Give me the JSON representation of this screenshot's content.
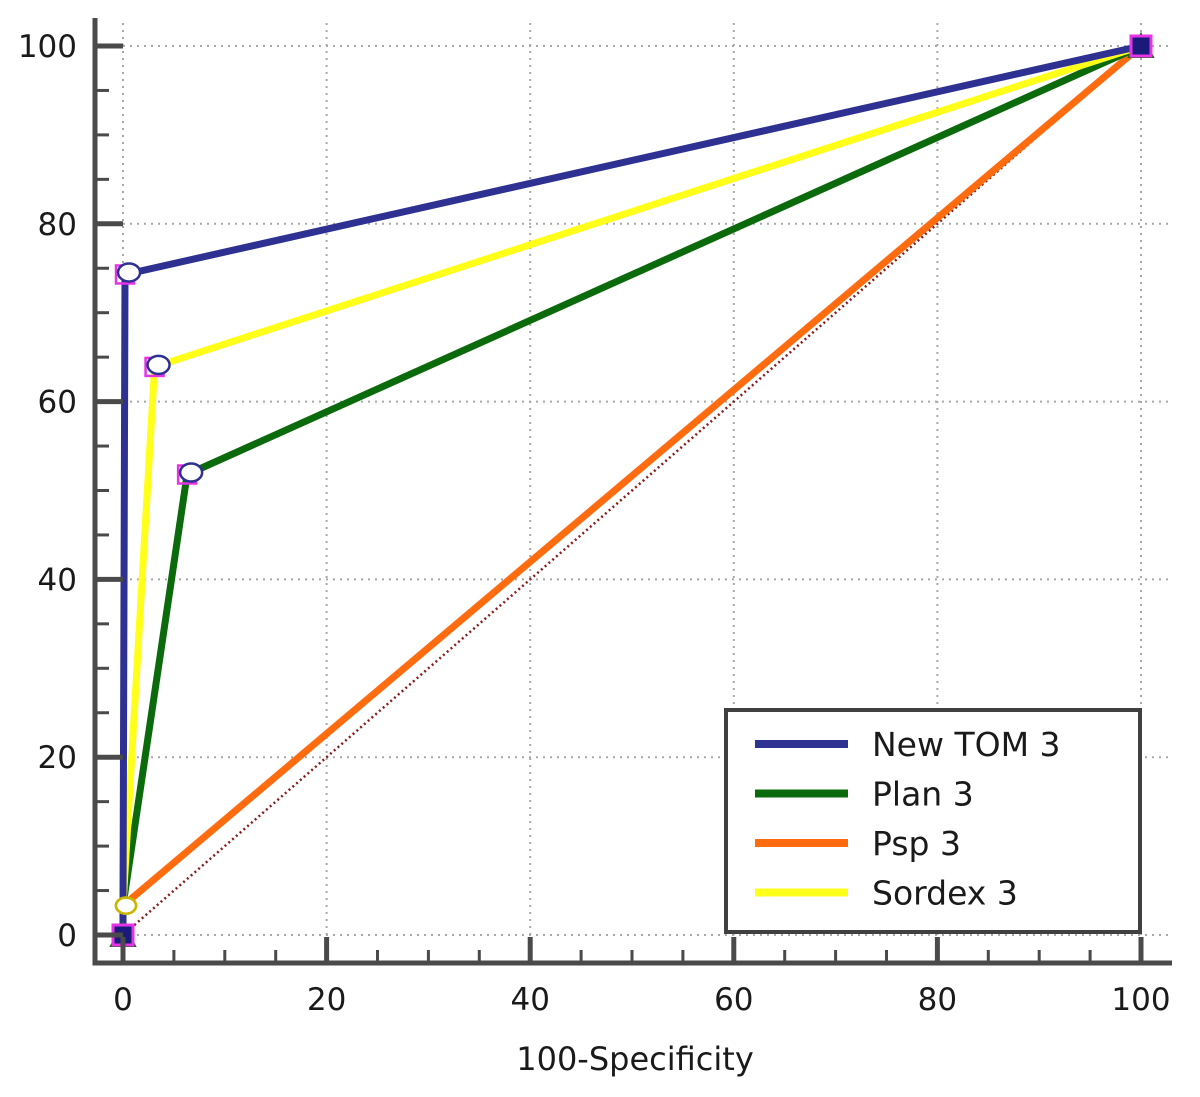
{
  "chart_data": {
    "type": "line",
    "title": "",
    "xlabel": "100-Specificity",
    "ylabel": "",
    "xlim": [
      0,
      100
    ],
    "ylim": [
      0,
      100
    ],
    "xticks": [
      0,
      20,
      40,
      60,
      80,
      100
    ],
    "yticks": [
      0,
      20,
      40,
      60,
      80,
      100
    ],
    "grid": true,
    "legend_position": "bottom-right",
    "reference_line": {
      "x": [
        0,
        100
      ],
      "y": [
        0,
        100
      ],
      "color": "#8B1A1A",
      "style": "dotted"
    },
    "series": [
      {
        "name": "New TOM 3",
        "color": "#2E3192",
        "x": [
          0,
          0,
          0.2,
          100
        ],
        "y": [
          0,
          3.3,
          74.3,
          100
        ]
      },
      {
        "name": "Plan 3",
        "color": "#0B6A0B",
        "x": [
          0,
          0,
          6.3,
          100
        ],
        "y": [
          0,
          3.3,
          51.8,
          100
        ]
      },
      {
        "name": "Psp 3",
        "color": "#FF6B0F",
        "x": [
          0,
          0,
          100
        ],
        "y": [
          0,
          3.3,
          100
        ]
      },
      {
        "name": "Sordex 3",
        "color": "#FFFF19",
        "x": [
          0,
          0,
          3.1,
          100
        ],
        "y": [
          0,
          3.3,
          63.9,
          100
        ]
      }
    ]
  }
}
